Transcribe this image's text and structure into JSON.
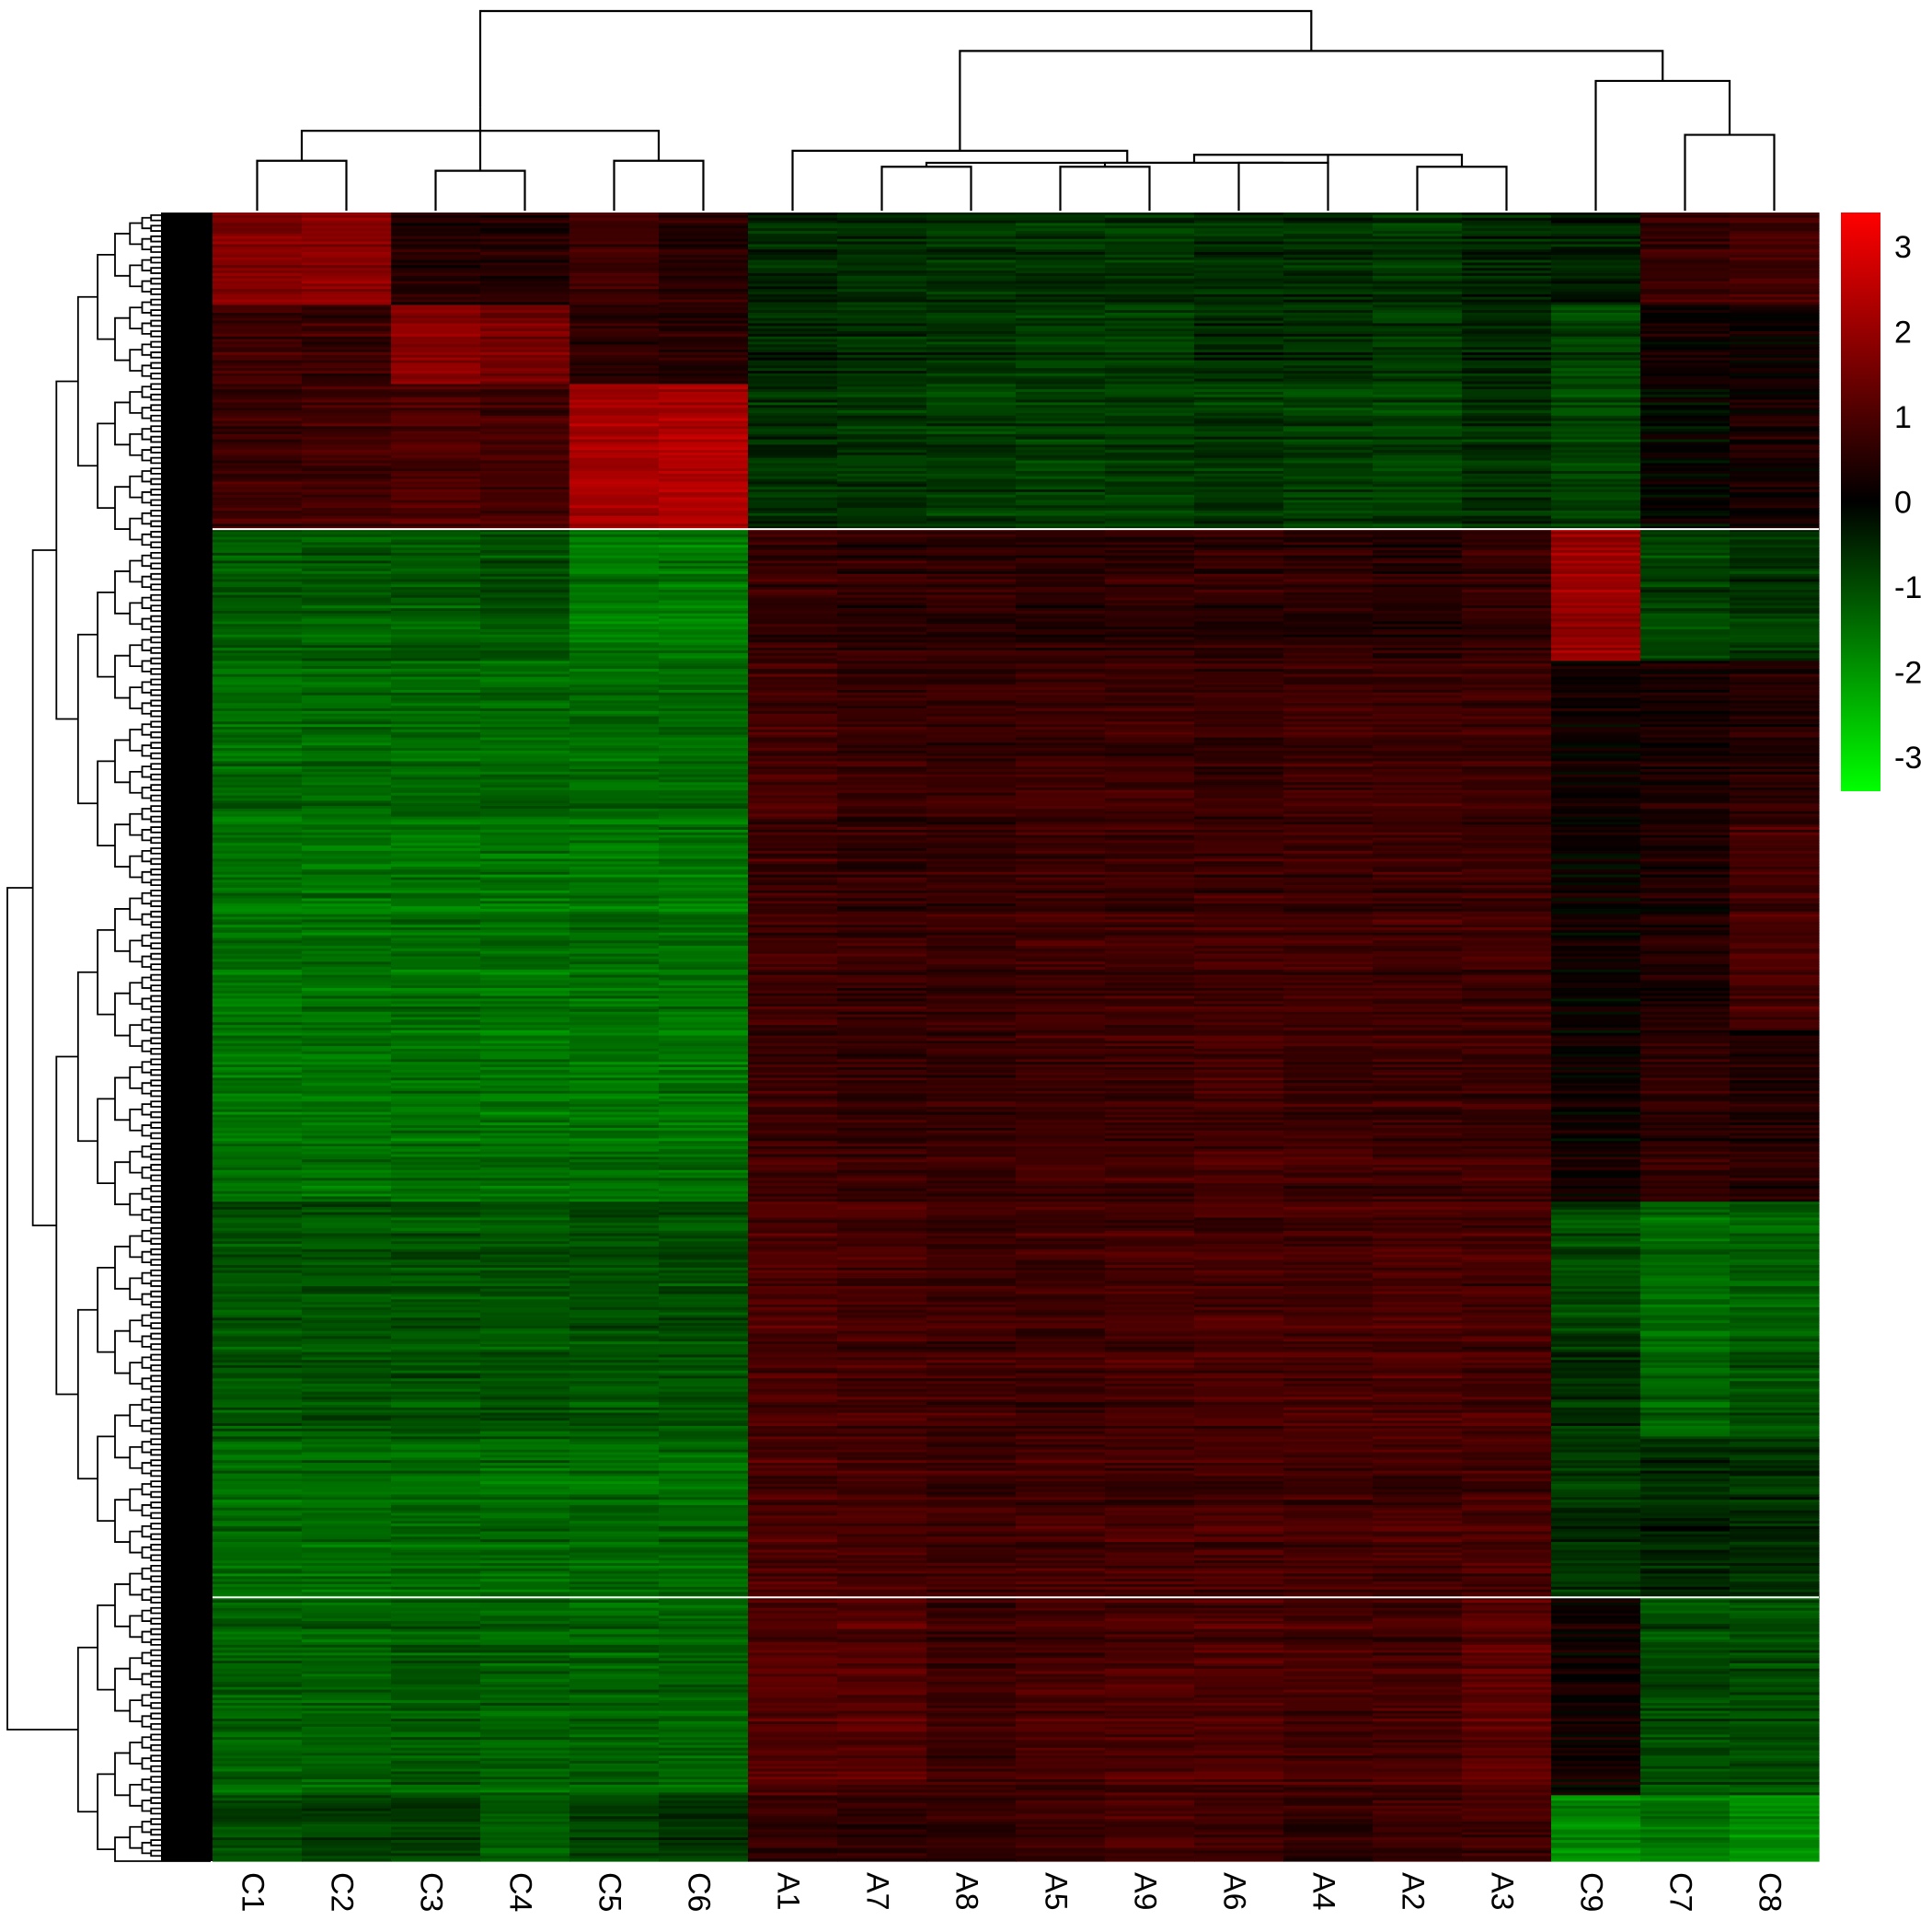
{
  "chart_data": {
    "type": "heatmap",
    "title": "",
    "columns": [
      "C1",
      "C2",
      "C3",
      "C4",
      "C5",
      "C6",
      "A1",
      "A7",
      "A8",
      "A5",
      "A9",
      "A6",
      "A4",
      "A2",
      "A3",
      "C9",
      "C7",
      "C8"
    ],
    "row_gaps_after_block": [
      2,
      9
    ],
    "color_scale": {
      "min": -3.4,
      "mid": 0,
      "max": 3.4,
      "low_color": "#00ff00",
      "mid_color": "#000000",
      "high_color": "#ff0000",
      "ticks": [
        3,
        2,
        1,
        0,
        -1,
        -2,
        -3
      ],
      "tick_labels": [
        "3",
        "2",
        "1",
        "0",
        "-1",
        "-2",
        "-3"
      ]
    },
    "row_blocks": [
      {
        "rows": 70,
        "values": [
          1.7,
          1.8,
          0.4,
          0.4,
          0.8,
          0.5,
          -0.5,
          -0.6,
          -0.7,
          -0.7,
          -0.7,
          -0.6,
          -0.6,
          -0.7,
          -0.5,
          -0.4,
          0.7,
          0.9
        ]
      },
      {
        "rows": 60,
        "values": [
          0.8,
          0.8,
          1.8,
          1.6,
          0.6,
          0.5,
          -0.5,
          -0.6,
          -0.7,
          -0.7,
          -0.7,
          -0.5,
          -0.6,
          -0.7,
          -0.5,
          -0.9,
          0.2,
          0.2
        ]
      },
      {
        "rows": 110,
        "values": [
          0.8,
          0.9,
          1.0,
          0.9,
          2.2,
          2.3,
          -0.6,
          -0.7,
          -0.8,
          -0.8,
          -0.8,
          -0.7,
          -0.8,
          -0.8,
          -0.6,
          -0.9,
          0.0,
          0.3
        ]
      },
      {
        "rows": 100,
        "values": [
          -1.2,
          -1.2,
          -1.2,
          -1.1,
          -1.6,
          -1.6,
          0.7,
          0.6,
          0.6,
          0.6,
          0.6,
          0.6,
          0.6,
          0.5,
          0.7,
          2.0,
          -0.9,
          -0.7
        ]
      },
      {
        "rows": 120,
        "values": [
          -1.4,
          -1.4,
          -1.4,
          -1.4,
          -1.4,
          -1.4,
          0.9,
          0.7,
          0.7,
          0.8,
          0.8,
          0.7,
          0.8,
          0.8,
          0.8,
          0.2,
          0.3,
          0.5
        ]
      },
      {
        "rows": 160,
        "values": [
          -1.5,
          -1.5,
          -1.5,
          -1.5,
          -1.5,
          -1.5,
          0.8,
          0.7,
          0.7,
          0.8,
          0.8,
          0.8,
          0.8,
          0.8,
          0.8,
          0.1,
          0.4,
          0.9
        ]
      },
      {
        "rows": 130,
        "values": [
          -1.5,
          -1.5,
          -1.5,
          -1.5,
          -1.5,
          -1.5,
          0.8,
          0.7,
          0.7,
          0.8,
          0.8,
          0.9,
          0.8,
          0.8,
          0.8,
          0.2,
          0.6,
          0.5
        ]
      },
      {
        "rows": 100,
        "values": [
          -1.1,
          -1.1,
          -1.1,
          -1.1,
          -1.0,
          -1.0,
          1.0,
          0.9,
          0.8,
          0.8,
          0.9,
          0.9,
          0.9,
          1.0,
          0.9,
          -1.0,
          -1.4,
          -1.3
        ]
      },
      {
        "rows": 80,
        "values": [
          -1.1,
          -1.1,
          -1.1,
          -1.1,
          -1.1,
          -1.1,
          0.9,
          0.9,
          0.8,
          0.8,
          0.9,
          0.9,
          0.9,
          1.0,
          0.9,
          -0.6,
          -1.3,
          -1.1
        ]
      },
      {
        "rows": 120,
        "values": [
          -1.4,
          -1.4,
          -1.4,
          -1.4,
          -1.4,
          -1.4,
          1.0,
          0.9,
          0.8,
          0.9,
          0.9,
          0.9,
          0.9,
          0.9,
          0.9,
          -0.7,
          -0.5,
          -0.6
        ]
      },
      {
        "rows": 150,
        "values": [
          -1.3,
          -1.3,
          -1.2,
          -1.3,
          -1.3,
          -1.3,
          1.1,
          1.1,
          0.8,
          0.9,
          1.0,
          1.0,
          0.9,
          0.9,
          1.2,
          0.2,
          -1.0,
          -1.0
        ]
      },
      {
        "rows": 50,
        "values": [
          -1.0,
          -0.8,
          -0.8,
          -1.2,
          -0.9,
          -0.7,
          0.6,
          0.6,
          0.6,
          0.8,
          0.9,
          0.8,
          0.6,
          0.8,
          0.8,
          -1.8,
          -1.6,
          -1.9
        ]
      }
    ],
    "column_dendrogram": [
      {
        "a": 0,
        "b": 1,
        "h": 0.25
      },
      {
        "a": 2,
        "b": 3,
        "h": 0.2
      },
      {
        "a": 4,
        "b": 5,
        "h": 0.25
      },
      {
        "a": 18,
        "b": 20,
        "h": 0.4
      },
      {
        "a": 19,
        "b": 21,
        "h": 0.52
      },
      {
        "a": 7,
        "b": 8,
        "h": 0.22
      },
      {
        "a": 9,
        "b": 10,
        "h": 0.22
      },
      {
        "a": 11,
        "b": 12,
        "h": 0.24
      },
      {
        "a": 13,
        "b": 14,
        "h": 0.22
      },
      {
        "a": 24,
        "b": 25,
        "h": 0.24
      },
      {
        "a": 27,
        "b": 26,
        "h": 0.28
      },
      {
        "a": 23,
        "b": 28,
        "h": 0.24
      },
      {
        "a": 6,
        "b": 29,
        "h": 0.3
      },
      {
        "a": 16,
        "b": 17,
        "h": 0.38
      },
      {
        "a": 15,
        "b": 31,
        "h": 0.65
      },
      {
        "a": 30,
        "b": 32,
        "h": 0.8
      },
      {
        "a": 22,
        "b": 33,
        "h": 1.0
      }
    ]
  }
}
